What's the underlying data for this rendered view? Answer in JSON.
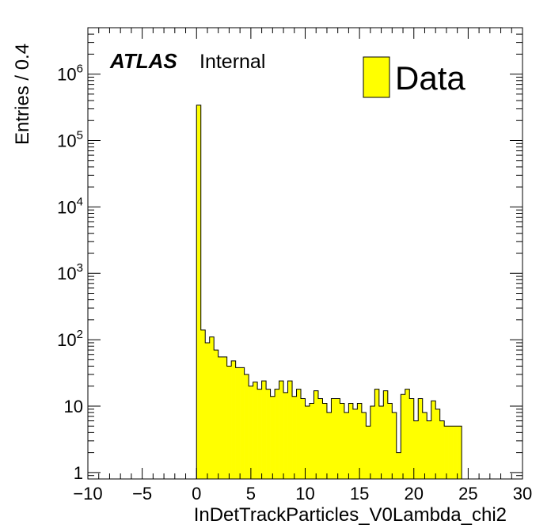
{
  "chart_data": {
    "type": "histogram",
    "title": "",
    "xlabel": "InDetTrackParticles_V0Lambda_chi2",
    "ylabel": "Entries / 0.4",
    "xlim": [
      -10,
      30
    ],
    "ylim": [
      0.8,
      5000000
    ],
    "yscale": "log",
    "bin_width": 0.4,
    "x_ticks": [
      {
        "value": -10,
        "label": "−10"
      },
      {
        "value": -5,
        "label": "−5"
      },
      {
        "value": 0,
        "label": "0"
      },
      {
        "value": 5,
        "label": "5"
      },
      {
        "value": 10,
        "label": "10"
      },
      {
        "value": 15,
        "label": "15"
      },
      {
        "value": 20,
        "label": "20"
      },
      {
        "value": 25,
        "label": "25"
      },
      {
        "value": 30,
        "label": "30"
      }
    ],
    "y_ticks": [
      {
        "value": 1,
        "base": "1",
        "exp": ""
      },
      {
        "value": 10,
        "base": "10",
        "exp": ""
      },
      {
        "value": 100,
        "base": "10",
        "exp": "2"
      },
      {
        "value": 1000,
        "base": "10",
        "exp": "3"
      },
      {
        "value": 10000,
        "base": "10",
        "exp": "4"
      },
      {
        "value": 100000,
        "base": "10",
        "exp": "5"
      },
      {
        "value": 1000000,
        "base": "10",
        "exp": "6"
      }
    ],
    "series": [
      {
        "name": "Data",
        "color": "#ffff00",
        "edge_color": "#000000",
        "x_start": 0,
        "values": [
          340000,
          140,
          90,
          110,
          70,
          55,
          55,
          40,
          48,
          38,
          38,
          30,
          20,
          23,
          18,
          24,
          18,
          14,
          18,
          24,
          16,
          24,
          14,
          18,
          13,
          10,
          11,
          17,
          13,
          11,
          8,
          13,
          13,
          11,
          8,
          11,
          9,
          11,
          8,
          5,
          10,
          18,
          10,
          17,
          11,
          8,
          2,
          15,
          18,
          13,
          6,
          13,
          8,
          6,
          12,
          9,
          6,
          5,
          5,
          5,
          5
        ]
      }
    ],
    "annotations": {
      "experiment": "ATLAS",
      "status": "Internal"
    },
    "legend": {
      "position": "top-right",
      "entries": [
        "Data"
      ]
    }
  }
}
